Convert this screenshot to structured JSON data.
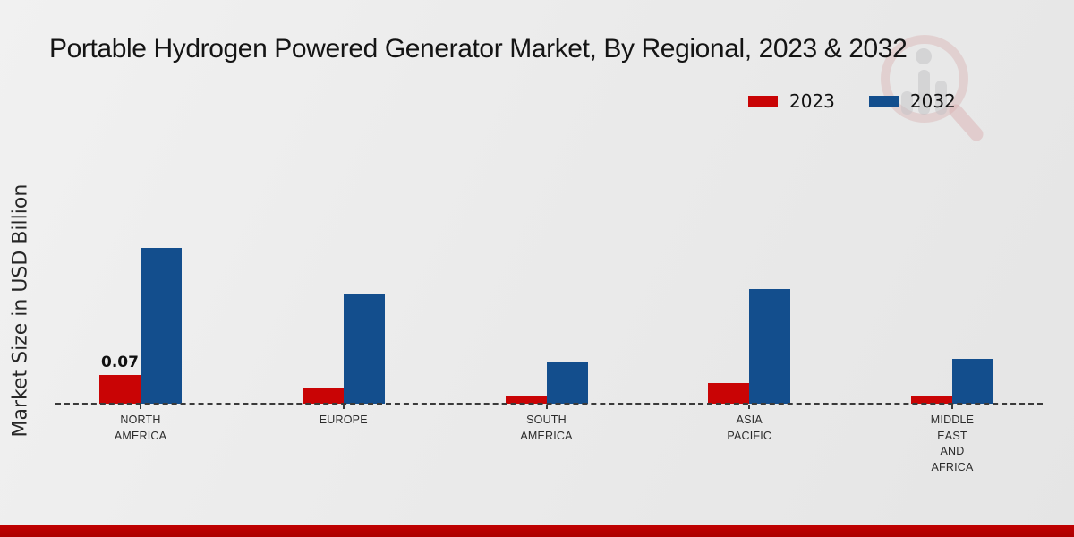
{
  "page": {
    "title": "Portable Hydrogen Powered Generator Market, By Regional, 2023 & 2032",
    "y_axis_label": "Market Size in USD Billion"
  },
  "colors": {
    "series_2023": "#c90405",
    "series_2032": "#134e8d",
    "footer_strip": "#c00000",
    "axis_line": "#3a3a3a"
  },
  "chart_data": {
    "type": "bar",
    "title": "Portable Hydrogen Powered Generator Market, By Regional, 2023 & 2032",
    "ylabel": "Market Size in USD Billion",
    "xlabel": "",
    "categories": [
      "NORTH\nAMERICA",
      "EUROPE",
      "SOUTH\nAMERICA",
      "ASIA\nPACIFIC",
      "MIDDLE\nEAST\nAND\nAFRICA"
    ],
    "series": [
      {
        "name": "2023",
        "color": "#c90405",
        "values": [
          0.07,
          0.04,
          0.02,
          0.05,
          0.02
        ]
      },
      {
        "name": "2032",
        "color": "#134e8d",
        "values": [
          0.38,
          0.27,
          0.1,
          0.28,
          0.11
        ]
      }
    ],
    "data_labels": [
      {
        "series_index": 0,
        "category_index": 0,
        "text": "0.07"
      }
    ],
    "ylim": [
      0,
      0.42
    ],
    "grid": false,
    "axis_style": "dashed-baseline-only",
    "legend_position": "top-right"
  }
}
